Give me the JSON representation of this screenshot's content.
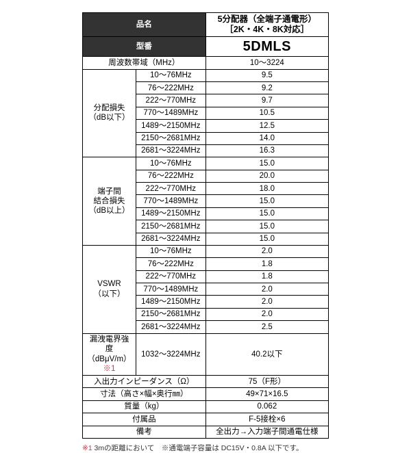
{
  "header": {
    "name_label": "品名",
    "product_title_1": "5分配器（全端子通電形）",
    "product_title_2": "［2K・4K・8K対応］",
    "model_label": "型番",
    "model_value": "5DMLS"
  },
  "freq_range": {
    "label": "周波数帯域（MHz）",
    "value": "10～3224"
  },
  "sections": [
    {
      "label": "分配損失\n（dB以下）",
      "rows": [
        {
          "band": "10～76MHz",
          "val": "9.5"
        },
        {
          "band": "76～222MHz",
          "val": "9.2"
        },
        {
          "band": "222～770MHz",
          "val": "9.7"
        },
        {
          "band": "770～1489MHz",
          "val": "10.5"
        },
        {
          "band": "1489～2150MHz",
          "val": "12.5"
        },
        {
          "band": "2150～2681MHz",
          "val": "14.0"
        },
        {
          "band": "2681～3224MHz",
          "val": "16.3"
        }
      ]
    },
    {
      "label": "端子間\n結合損失\n（dB以上）",
      "rows": [
        {
          "band": "10～76MHz",
          "val": "15.0"
        },
        {
          "band": "76～222MHz",
          "val": "20.0"
        },
        {
          "band": "222～770MHz",
          "val": "18.0"
        },
        {
          "band": "770～1489MHz",
          "val": "15.0"
        },
        {
          "band": "1489～2150MHz",
          "val": "15.0"
        },
        {
          "band": "2150～2681MHz",
          "val": "15.0"
        },
        {
          "band": "2681～3224MHz",
          "val": "15.0"
        }
      ]
    },
    {
      "label": "VSWR\n（以下）",
      "rows": [
        {
          "band": "10～76MHz",
          "val": "2.0"
        },
        {
          "band": "76～222MHz",
          "val": "1.8"
        },
        {
          "band": "222～770MHz",
          "val": "1.8"
        },
        {
          "band": "770～1489MHz",
          "val": "2.0"
        },
        {
          "band": "1489～2150MHz",
          "val": "2.0"
        },
        {
          "band": "2150～2681MHz",
          "val": "2.0"
        },
        {
          "band": "2681～3224MHz",
          "val": "2.5"
        }
      ]
    }
  ],
  "leak": {
    "label_1": "漏洩電界強度",
    "label_2": "（dBμV/m）",
    "mark": "※1",
    "band": "1032～3224MHz",
    "value": "40.2以下"
  },
  "misc": [
    {
      "label": "入出力インピーダンス（Ω）",
      "value": "75（F形）"
    },
    {
      "label": "寸法（高さ×幅×奥行㎜）",
      "value": "49×71×16.5"
    },
    {
      "label": "質量（kg）",
      "value": "0.062"
    },
    {
      "label": "付属品",
      "value": "F-5接栓×6"
    },
    {
      "label": "備考",
      "value": "全出力→入力端子間通電仕様"
    }
  ],
  "footnote": {
    "mark": "※1",
    "text_a": " 3mの距離において　※通電端子容量は DC15V・0.8A 以下です。"
  }
}
